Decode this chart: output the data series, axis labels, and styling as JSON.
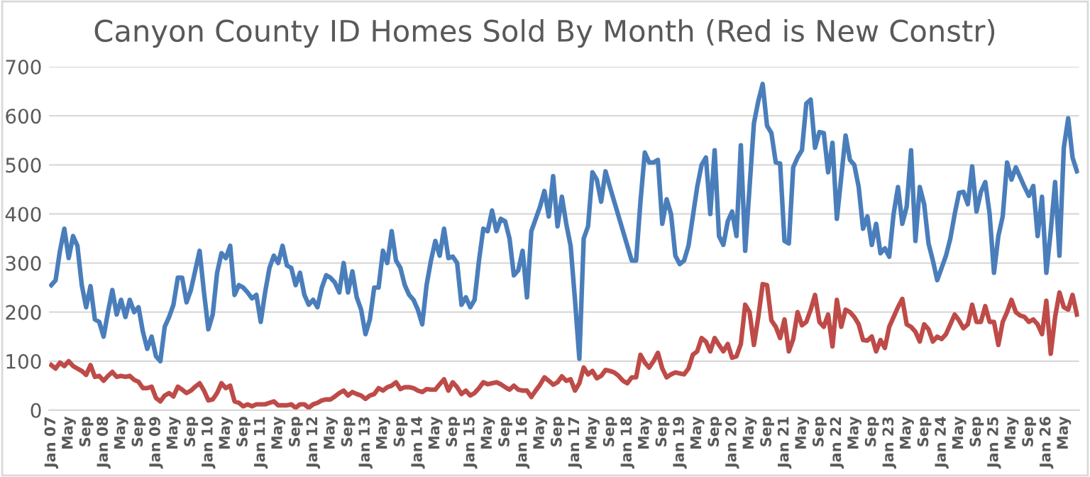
{
  "chart_data": {
    "type": "line",
    "title": "Canyon County ID Homes Sold By Month (Red is New Constr)",
    "categories": [
      "Jan 07",
      null,
      null,
      null,
      "May",
      null,
      null,
      null,
      "Sep",
      null,
      null,
      null,
      "Jan 08",
      null,
      null,
      null,
      "May",
      null,
      null,
      null,
      "Sep",
      null,
      null,
      null,
      "Jan 09",
      null,
      null,
      null,
      "May",
      null,
      null,
      null,
      "Sep",
      null,
      null,
      null,
      "Jan 10",
      null,
      null,
      null,
      "May",
      null,
      null,
      null,
      "Sep",
      null,
      null,
      null,
      "Jan 11",
      null,
      null,
      null,
      "May",
      null,
      null,
      null,
      "Sep",
      null,
      null,
      null,
      "Jan 12",
      null,
      null,
      null,
      "May",
      null,
      null,
      null,
      "Sep",
      null,
      null,
      null,
      "Jan 13",
      null,
      null,
      null,
      "May",
      null,
      null,
      null,
      "Sep",
      null,
      null,
      null,
      "Jan 14",
      null,
      null,
      null,
      "May",
      null,
      null,
      null,
      "Sep",
      null,
      null,
      null,
      "Jan 15",
      null,
      null,
      null,
      "May",
      null,
      null,
      null,
      "Sep",
      null,
      null,
      null,
      "Jan 16",
      null,
      null,
      null,
      "May",
      null,
      null,
      null,
      "Sep",
      null,
      null,
      null,
      "Jan 17",
      null,
      null,
      null,
      "May",
      null,
      null,
      null,
      "Sep",
      null,
      null,
      null,
      "Jan 18",
      null,
      null,
      null,
      "May",
      null,
      null,
      null,
      "Sep",
      null,
      null,
      null,
      "Jan 19",
      null,
      null,
      null,
      "May",
      null,
      null,
      null,
      "Sep",
      null,
      null,
      null,
      "Jan 20",
      null,
      null,
      null,
      "May",
      null,
      null,
      null,
      "Sep",
      null,
      null,
      null,
      "Jan 21",
      null,
      null,
      null,
      "May",
      null,
      null,
      null,
      "Sep",
      null,
      null,
      null,
      "Jan 22",
      null,
      null,
      null,
      "May",
      null,
      null,
      null,
      "Sep",
      null,
      null,
      null,
      "Jan 23",
      null,
      null,
      null,
      "May",
      null,
      null,
      null,
      "Sep",
      null,
      null,
      null,
      "Jan 24",
      null,
      null,
      null,
      "May",
      null,
      null,
      null,
      "Sep",
      null,
      null,
      null,
      "Jan 25",
      null,
      null,
      null,
      "May",
      null,
      null,
      null,
      "Sep",
      null,
      null,
      null,
      "Jan 26",
      null,
      null,
      null,
      "May",
      null,
      null,
      null
    ],
    "series": [
      {
        "color": "#4a7ebb",
        "values": [
          255,
          265,
          325,
          370,
          310,
          355,
          335,
          255,
          210,
          253,
          185,
          180,
          150,
          200,
          245,
          195,
          225,
          190,
          225,
          200,
          210,
          160,
          125,
          150,
          110,
          100,
          170,
          190,
          215,
          270,
          270,
          220,
          245,
          285,
          325,
          240,
          165,
          195,
          280,
          320,
          310,
          335,
          235,
          255,
          250,
          240,
          228,
          235,
          180,
          240,
          290,
          315,
          300,
          335,
          295,
          290,
          255,
          280,
          235,
          215,
          225,
          210,
          250,
          275,
          270,
          260,
          240,
          300,
          240,
          283,
          230,
          205,
          155,
          185,
          250,
          250,
          325,
          300,
          365,
          305,
          290,
          255,
          235,
          225,
          205,
          175,
          255,
          305,
          345,
          315,
          370,
          310,
          313,
          300,
          215,
          230,
          210,
          225,
          305,
          370,
          365,
          407,
          365,
          390,
          385,
          350,
          275,
          285,
          325,
          230,
          365,
          390,
          415,
          447,
          395,
          477,
          375,
          435,
          380,
          335,
          225,
          105,
          350,
          375,
          485,
          470,
          425,
          487,
          455,
          425,
          395,
          365,
          335,
          305,
          305,
          425,
          525,
          505,
          505,
          510,
          380,
          430,
          400,
          315,
          298,
          305,
          335,
          395,
          455,
          500,
          515,
          400,
          530,
          355,
          337,
          385,
          405,
          355,
          540,
          325,
          455,
          585,
          630,
          665,
          580,
          565,
          505,
          503,
          345,
          340,
          495,
          515,
          530,
          625,
          633,
          535,
          567,
          565,
          485,
          545,
          390,
          475,
          560,
          510,
          500,
          455,
          370,
          395,
          337,
          380,
          320,
          330,
          313,
          400,
          455,
          380,
          415,
          530,
          345,
          455,
          420,
          340,
          305,
          265,
          290,
          315,
          350,
          400,
          443,
          445,
          420,
          497,
          405,
          445,
          465,
          400,
          280,
          355,
          395,
          505,
          470,
          495,
          475,
          455,
          437,
          457,
          355,
          435,
          280,
          365,
          465,
          315,
          535,
          595,
          515,
          487
        ]
      },
      {
        "color": "#be4b48",
        "values": [
          92,
          85,
          97,
          90,
          100,
          90,
          85,
          80,
          72,
          92,
          68,
          70,
          60,
          70,
          78,
          68,
          70,
          68,
          70,
          62,
          58,
          45,
          45,
          48,
          25,
          18,
          30,
          35,
          28,
          48,
          42,
          35,
          40,
          48,
          55,
          40,
          20,
          22,
          35,
          55,
          45,
          50,
          18,
          15,
          8,
          12,
          8,
          12,
          12,
          12,
          15,
          18,
          10,
          10,
          10,
          12,
          5,
          12,
          12,
          5,
          12,
          15,
          20,
          22,
          22,
          28,
          35,
          40,
          30,
          37,
          33,
          30,
          23,
          30,
          33,
          45,
          40,
          47,
          50,
          57,
          43,
          47,
          47,
          45,
          40,
          37,
          43,
          42,
          42,
          53,
          63,
          40,
          57,
          47,
          33,
          40,
          30,
          35,
          45,
          57,
          53,
          55,
          57,
          53,
          47,
          42,
          50,
          42,
          40,
          40,
          27,
          40,
          52,
          67,
          60,
          52,
          57,
          69,
          60,
          63,
          40,
          55,
          87,
          73,
          80,
          65,
          70,
          82,
          80,
          77,
          70,
          60,
          55,
          67,
          67,
          113,
          97,
          87,
          100,
          117,
          85,
          67,
          73,
          77,
          75,
          73,
          85,
          113,
          120,
          147,
          140,
          120,
          147,
          133,
          120,
          135,
          107,
          110,
          135,
          215,
          200,
          133,
          190,
          257,
          255,
          183,
          170,
          147,
          185,
          120,
          145,
          200,
          173,
          180,
          205,
          235,
          180,
          170,
          195,
          130,
          225,
          170,
          205,
          200,
          190,
          175,
          143,
          142,
          150,
          120,
          143,
          127,
          170,
          190,
          210,
          227,
          175,
          170,
          160,
          140,
          175,
          165,
          140,
          150,
          145,
          155,
          175,
          195,
          183,
          167,
          175,
          215,
          180,
          180,
          212,
          180,
          180,
          133,
          180,
          200,
          225,
          200,
          193,
          190,
          180,
          185,
          175,
          155,
          223,
          115,
          190,
          240,
          210,
          205,
          235,
          195
        ]
      }
    ],
    "ylim": [
      0,
      700
    ],
    "yticks": [
      0,
      100,
      200,
      300,
      400,
      500,
      600,
      700
    ],
    "grid": "y",
    "marker": "none",
    "line_style": "solid"
  }
}
